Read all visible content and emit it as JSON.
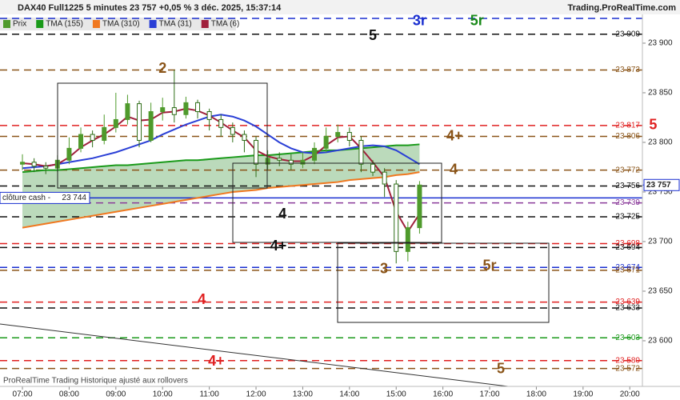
{
  "chart_data": {
    "type": "candlestick",
    "title": "DAX40 Full1225 5 minutes 23 757 +0,05 % 3 déc. 2025, 15:37:14",
    "source": "Trading.ProRealTime.com",
    "footer": "ProRealTime Trading  Historique ajusté aux rollovers",
    "price_name": "Prix",
    "up_color": "#4f9a2c",
    "down_color": "#2f6e18",
    "x": [
      7,
      7.25,
      7.5,
      7.75,
      8,
      8.25,
      8.5,
      8.75,
      9,
      9.25,
      9.5,
      9.75,
      10,
      10.25,
      10.5,
      10.75,
      11,
      11.25,
      11.5,
      11.75,
      12,
      12.25,
      12.5,
      12.75,
      13,
      13.25,
      13.5,
      13.75,
      14,
      14.25,
      14.5,
      14.75,
      15,
      15.25,
      15.5
    ],
    "open": [
      23778,
      23780,
      23776,
      23774,
      23782,
      23794,
      23808,
      23802,
      23815,
      23823,
      23839,
      23802,
      23831,
      23835,
      23828,
      23840,
      23831,
      23823,
      23815,
      23808,
      23802,
      23778,
      23784,
      23782,
      23778,
      23782,
      23794,
      23806,
      23810,
      23802,
      23778,
      23770,
      23758,
      23690,
      23714
    ],
    "high": [
      23788,
      23784,
      23780,
      23787,
      23805,
      23815,
      23812,
      23828,
      23850,
      23848,
      23842,
      23840,
      23845,
      23873,
      23846,
      23843,
      23834,
      23828,
      23820,
      23812,
      23806,
      23792,
      23790,
      23788,
      23790,
      23800,
      23815,
      23818,
      23815,
      23806,
      23782,
      23774,
      23762,
      23720,
      23761
    ],
    "low": [
      23772,
      23770,
      23768,
      23770,
      23778,
      23790,
      23795,
      23798,
      23810,
      23818,
      23795,
      23800,
      23822,
      23820,
      23824,
      23824,
      23812,
      23806,
      23800,
      23790,
      23765,
      23772,
      23776,
      23772,
      23774,
      23778,
      23790,
      23800,
      23796,
      23770,
      23766,
      23745,
      23678,
      23680,
      23708
    ],
    "close": [
      23780,
      23776,
      23774,
      23782,
      23794,
      23808,
      23802,
      23815,
      23823,
      23839,
      23802,
      23831,
      23835,
      23828,
      23840,
      23831,
      23823,
      23815,
      23808,
      23802,
      23778,
      23784,
      23782,
      23778,
      23782,
      23794,
      23806,
      23810,
      23802,
      23778,
      23770,
      23758,
      23690,
      23714,
      23757
    ],
    "series": [
      {
        "name": "TMA (155)",
        "color": "#1a9a1a",
        "values": [
          23770,
          23771,
          23772,
          23772,
          23773,
          23774,
          23775,
          23776,
          23777,
          23777,
          23778,
          23779,
          23780,
          23781,
          23782,
          23782,
          23783,
          23784,
          23785,
          23786,
          23787,
          23787,
          23788,
          23789,
          23790,
          23791,
          23792,
          23792,
          23793,
          23794,
          23795,
          23796,
          23797,
          23797,
          23798
        ]
      },
      {
        "name": "TMA (310)",
        "color": "#f07820",
        "values": [
          23714,
          23716,
          23718,
          23720,
          23722,
          23724,
          23726,
          23728,
          23730,
          23732,
          23734,
          23736,
          23738,
          23740,
          23742,
          23744,
          23746,
          23748,
          23750,
          23751,
          23752,
          23754,
          23755,
          23756,
          23757,
          23758,
          23759,
          23760,
          23762,
          23763,
          23764,
          23765,
          23767,
          23768,
          23770
        ]
      },
      {
        "name": "TMA (31)",
        "color": "#2a3fd6",
        "values": [
          23774,
          23775,
          23776,
          23778,
          23780,
          23782,
          23784,
          23787,
          23790,
          23794,
          23798,
          23802,
          23808,
          23813,
          23818,
          23822,
          23826,
          23828,
          23826,
          23822,
          23816,
          23808,
          23800,
          23794,
          23790,
          23789,
          23790,
          23792,
          23794,
          23796,
          23797,
          23796,
          23792,
          23785,
          23778
        ]
      },
      {
        "name": "TMA (6)",
        "color": "#a0203c",
        "values": [
          23779,
          23778,
          23776,
          23778,
          23785,
          23795,
          23802,
          23808,
          23816,
          23826,
          23822,
          23823,
          23830,
          23831,
          23834,
          23832,
          23827,
          23820,
          23812,
          23805,
          23792,
          23786,
          23783,
          23781,
          23781,
          23787,
          23797,
          23805,
          23806,
          23794,
          23780,
          23765,
          23730,
          23710,
          23728
        ]
      }
    ],
    "levels": [
      {
        "value": 23925,
        "label": "",
        "color": "#1a2fd0"
      },
      {
        "value": 23909,
        "label": "23 909",
        "color": "#111111"
      },
      {
        "value": 23873,
        "label": "23 873",
        "color": "#8a5418"
      },
      {
        "value": 23817,
        "label": "23 817",
        "color": "#e02020"
      },
      {
        "value": 23806,
        "label": "23 806",
        "color": "#8a5418"
      },
      {
        "value": 23772,
        "label": "23 772",
        "color": "#8a5418"
      },
      {
        "value": 23756,
        "label": "23 756",
        "color": "#111111"
      },
      {
        "value": 23739,
        "label": "23 739",
        "color": "#8a3a9a"
      },
      {
        "value": 23725,
        "label": "23 725",
        "color": "#111111"
      },
      {
        "value": 23698,
        "label": "23 698",
        "color": "#e02020"
      },
      {
        "value": 23694,
        "label": "23 694",
        "color": "#111111"
      },
      {
        "value": 23674,
        "label": "23 674",
        "color": "#1a2fd0"
      },
      {
        "value": 23671,
        "label": "23 671",
        "color": "#8a5418"
      },
      {
        "value": 23639,
        "label": "23 639",
        "color": "#e02020"
      },
      {
        "value": 23633,
        "label": "23 633",
        "color": "#111111"
      },
      {
        "value": 23603,
        "label": "23 603",
        "color": "#1a9a1a"
      },
      {
        "value": 23580,
        "label": "23 580",
        "color": "#e02020"
      },
      {
        "value": 23572,
        "label": "23 572",
        "color": "#8a5418"
      }
    ],
    "annotations": [
      {
        "text": "3r",
        "x": 15.5,
        "y": 23922,
        "color": "#1a2fd0"
      },
      {
        "text": "5r",
        "x": 16.73,
        "y": 23922,
        "color": "#1a8a1a"
      },
      {
        "text": "5",
        "x": 14.5,
        "y": 23907,
        "color": "#111111"
      },
      {
        "text": "2",
        "x": 10.0,
        "y": 23874,
        "color": "#8a5418"
      },
      {
        "text": "5",
        "x": 20.5,
        "y": 23817,
        "color": "#e02020"
      },
      {
        "text": "4+",
        "x": 16.25,
        "y": 23806,
        "color": "#8a5418"
      },
      {
        "text": "4",
        "x": 16.23,
        "y": 23772,
        "color": "#8a5418"
      },
      {
        "text": "4",
        "x": 12.57,
        "y": 23727,
        "color": "#111111"
      },
      {
        "text": "4+",
        "x": 12.48,
        "y": 23695,
        "color": "#111111"
      },
      {
        "text": "3",
        "x": 14.74,
        "y": 23672,
        "color": "#8a5418"
      },
      {
        "text": "5r",
        "x": 17.0,
        "y": 23675,
        "color": "#8a5418"
      },
      {
        "text": "4",
        "x": 10.84,
        "y": 23641,
        "color": "#e02020"
      },
      {
        "text": "4+",
        "x": 11.15,
        "y": 23579,
        "color": "#e02020"
      },
      {
        "text": "5",
        "x": 17.24,
        "y": 23571,
        "color": "#8a5418"
      }
    ],
    "cash_close": {
      "label": "clôture cash -",
      "value": 23744,
      "value_label": "23 744",
      "color": "#1a2fd0"
    },
    "last_price": {
      "value": 23757,
      "label": "23 757"
    },
    "xlim": [
      6.52,
      20.27
    ],
    "ylim": [
      23554,
      23929
    ],
    "xticks": [
      {
        "value": 7,
        "label": "07:00"
      },
      {
        "value": 8,
        "label": "08:00"
      },
      {
        "value": 9,
        "label": "09:00"
      },
      {
        "value": 10,
        "label": "10:00"
      },
      {
        "value": 11,
        "label": "11:00"
      },
      {
        "value": 12,
        "label": "12:00"
      },
      {
        "value": 13,
        "label": "13:00"
      },
      {
        "value": 14,
        "label": "14:00"
      },
      {
        "value": 15,
        "label": "15:00"
      },
      {
        "value": 16,
        "label": "16:00"
      },
      {
        "value": 17,
        "label": "17:00"
      },
      {
        "value": 18,
        "label": "18:00"
      },
      {
        "value": 19,
        "label": "19:00"
      },
      {
        "value": 20,
        "label": "20:00"
      }
    ],
    "yticks": [
      {
        "value": 23600,
        "label": "23 600"
      },
      {
        "value": 23650,
        "label": "23 650"
      },
      {
        "value": 23700,
        "label": "23 700"
      },
      {
        "value": 23750,
        "label": "23 750"
      },
      {
        "value": 23800,
        "label": "23 800"
      },
      {
        "value": 23850,
        "label": "23 850"
      },
      {
        "value": 23900,
        "label": "23 900"
      }
    ]
  }
}
